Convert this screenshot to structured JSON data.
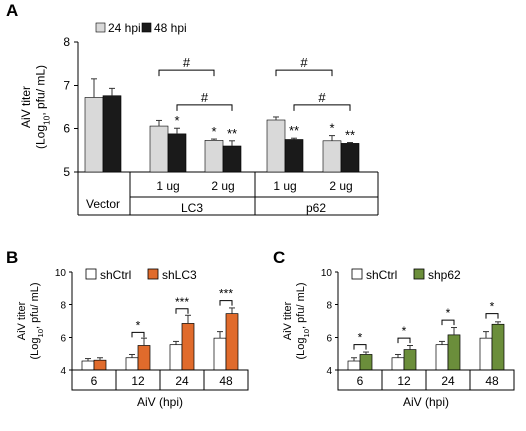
{
  "chart_data": [
    {
      "panel": "A",
      "type": "bar",
      "ylabel_line1": "AiV titer",
      "ylabel_line2_pre": "(Log",
      "ylabel_line2_sub": "10",
      "ylabel_line2_post": ", pfu/ mL)",
      "ylim": [
        5,
        8
      ],
      "yticks": [
        "5",
        "6",
        "7",
        "8"
      ],
      "categories": [
        "",
        "1 ug",
        "2 ug",
        "1 ug",
        "2 ug"
      ],
      "groups": [
        "Vector",
        "LC3",
        "p62"
      ],
      "series": [
        {
          "name": "24 hpi",
          "color": "#d9d9d9",
          "values": [
            6.72,
            6.06,
            5.73,
            6.2,
            5.72
          ],
          "errors": [
            0.43,
            0.13,
            0.03,
            0.07,
            0.12
          ]
        },
        {
          "name": "48 hpi",
          "color": "#1a1a1a",
          "values": [
            6.76,
            5.88,
            5.6,
            5.75,
            5.66
          ],
          "errors": [
            0.17,
            0.13,
            0.12,
            0.03,
            0.02
          ]
        }
      ],
      "star_marks": [
        {
          "series": 1,
          "index": 1,
          "text": "*"
        },
        {
          "series": 0,
          "index": 2,
          "text": "*"
        },
        {
          "series": 1,
          "index": 2,
          "text": "**"
        },
        {
          "series": 1,
          "index": 3,
          "text": "**"
        },
        {
          "series": 0,
          "index": 4,
          "text": "*"
        },
        {
          "series": 1,
          "index": 4,
          "text": "**"
        }
      ],
      "brackets": [
        {
          "from": [
            0,
            1
          ],
          "to": [
            0,
            2
          ],
          "text": "#",
          "level": 7.35
        },
        {
          "from": [
            1,
            1
          ],
          "to": [
            1,
            2
          ],
          "text": "#",
          "level": 6.55
        },
        {
          "from": [
            0,
            3
          ],
          "to": [
            0,
            4
          ],
          "text": "#",
          "level": 7.35
        },
        {
          "from": [
            1,
            3
          ],
          "to": [
            1,
            4
          ],
          "text": "#",
          "level": 6.55
        }
      ]
    },
    {
      "panel": "B",
      "type": "bar",
      "ylabel_line1": "AiV titer",
      "ylabel_line2_pre": "(Log",
      "ylabel_line2_sub": "10",
      "ylabel_line2_post": ", pfu/ mL)",
      "xlabel": "AiV (hpi)",
      "ylim": [
        4,
        10
      ],
      "yticks": [
        "4",
        "6",
        "8",
        "10"
      ],
      "categories": [
        "6",
        "12",
        "24",
        "48"
      ],
      "series": [
        {
          "name": "shCtrl",
          "color": "#ffffff",
          "values": [
            4.55,
            4.75,
            5.55,
            5.95
          ],
          "errors": [
            0.15,
            0.2,
            0.2,
            0.4
          ]
        },
        {
          "name": "shLC3",
          "color": "#e06b2c",
          "values": [
            4.6,
            5.5,
            6.85,
            7.45
          ],
          "errors": [
            0.15,
            0.45,
            0.5,
            0.35
          ]
        }
      ],
      "brackets": [
        {
          "index": 1,
          "text": "*",
          "level": 6.3
        },
        {
          "index": 2,
          "text": "***",
          "level": 7.75
        },
        {
          "index": 3,
          "text": "***",
          "level": 8.25
        }
      ]
    },
    {
      "panel": "C",
      "type": "bar",
      "ylabel_line1": "AiV titer",
      "ylabel_line2_pre": "(Log",
      "ylabel_line2_sub": "10",
      "ylabel_line2_post": ", pfu/ mL)",
      "xlabel": "AiV (hpi)",
      "ylim": [
        4,
        10
      ],
      "yticks": [
        "4",
        "6",
        "8",
        "10"
      ],
      "categories": [
        "6",
        "12",
        "24",
        "48"
      ],
      "series": [
        {
          "name": "shCtrl",
          "color": "#ffffff",
          "values": [
            4.55,
            4.75,
            5.55,
            5.95
          ],
          "errors": [
            0.2,
            0.2,
            0.2,
            0.4
          ]
        },
        {
          "name": "shp62",
          "color": "#6b8e3b",
          "values": [
            4.95,
            5.25,
            6.15,
            6.8
          ],
          "errors": [
            0.15,
            0.25,
            0.45,
            0.15
          ]
        }
      ],
      "brackets": [
        {
          "index": 0,
          "text": "*",
          "level": 5.55
        },
        {
          "index": 1,
          "text": "*",
          "level": 5.95
        },
        {
          "index": 2,
          "text": "*",
          "level": 7.05
        },
        {
          "index": 3,
          "text": "*",
          "level": 7.45
        }
      ]
    }
  ],
  "panels": {
    "A": "A",
    "B": "B",
    "C": "C"
  }
}
